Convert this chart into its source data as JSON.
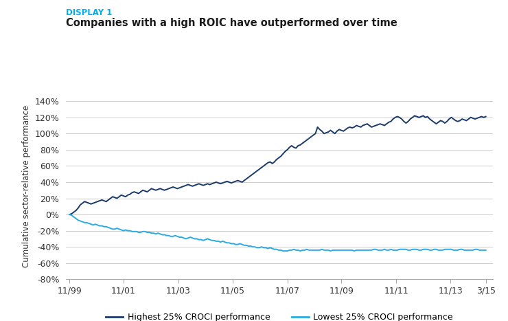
{
  "title_display": "DISPLAY 1",
  "title_main": "Companies with a high ROIC have outperformed over time",
  "ylabel": "Cumulative sector-relative performance",
  "display_color": "#00AEEF",
  "title_color": "#1a1a1a",
  "background_color": "#ffffff",
  "grid_color": "#cccccc",
  "ylim": [
    -80,
    150
  ],
  "yticks": [
    -80,
    -60,
    -40,
    -20,
    0,
    20,
    40,
    60,
    80,
    100,
    120,
    140
  ],
  "xtick_labels": [
    "11/99",
    "11/01",
    "11/03",
    "11/05",
    "11/07",
    "11/09",
    "11/11",
    "11/13",
    "3/15"
  ],
  "legend_high": "Highest 25% CROCI performance",
  "legend_low": "Lowest 25% CROCI performance",
  "high_color": "#1a3a6b",
  "low_color": "#29ABE2",
  "high_y": [
    0,
    1,
    3,
    5,
    8,
    12,
    14,
    16,
    15,
    14,
    13,
    14,
    15,
    16,
    17,
    18,
    17,
    16,
    18,
    20,
    22,
    21,
    20,
    22,
    24,
    23,
    22,
    24,
    25,
    27,
    28,
    27,
    26,
    28,
    30,
    29,
    28,
    30,
    32,
    31,
    30,
    31,
    32,
    31,
    30,
    31,
    32,
    33,
    34,
    33,
    32,
    33,
    34,
    35,
    36,
    37,
    36,
    35,
    36,
    37,
    38,
    37,
    36,
    37,
    38,
    37,
    38,
    39,
    40,
    39,
    38,
    39,
    40,
    41,
    40,
    39,
    40,
    41,
    42,
    41,
    40,
    42,
    44,
    46,
    48,
    50,
    52,
    54,
    56,
    58,
    60,
    62,
    64,
    65,
    63,
    65,
    68,
    70,
    72,
    75,
    78,
    80,
    83,
    85,
    83,
    82,
    85,
    86,
    88,
    90,
    92,
    94,
    96,
    98,
    100,
    108,
    105,
    103,
    100,
    101,
    102,
    104,
    102,
    100,
    103,
    105,
    104,
    103,
    105,
    107,
    108,
    107,
    108,
    110,
    109,
    108,
    110,
    111,
    112,
    110,
    108,
    109,
    110,
    111,
    112,
    111,
    110,
    112,
    114,
    115,
    118,
    120,
    121,
    120,
    118,
    115,
    113,
    115,
    118,
    120,
    122,
    121,
    120,
    121,
    122,
    120,
    121,
    118,
    116,
    114,
    112,
    114,
    116,
    115,
    113,
    115,
    118,
    120,
    118,
    116,
    115,
    116,
    118,
    117,
    116,
    118,
    120,
    119,
    118,
    119,
    120,
    121,
    120,
    121
  ],
  "low_y": [
    0,
    -1,
    -3,
    -5,
    -7,
    -8,
    -9,
    -10,
    -10,
    -11,
    -12,
    -13,
    -12,
    -13,
    -14,
    -14,
    -15,
    -15,
    -16,
    -17,
    -18,
    -18,
    -17,
    -18,
    -19,
    -20,
    -19,
    -20,
    -20,
    -21,
    -21,
    -21,
    -22,
    -22,
    -21,
    -21,
    -22,
    -22,
    -23,
    -23,
    -24,
    -23,
    -24,
    -25,
    -25,
    -26,
    -26,
    -27,
    -27,
    -26,
    -27,
    -28,
    -28,
    -29,
    -30,
    -29,
    -28,
    -29,
    -30,
    -30,
    -31,
    -31,
    -32,
    -31,
    -30,
    -31,
    -32,
    -32,
    -33,
    -33,
    -34,
    -33,
    -34,
    -35,
    -35,
    -36,
    -36,
    -37,
    -37,
    -36,
    -37,
    -38,
    -38,
    -39,
    -39,
    -40,
    -40,
    -41,
    -41,
    -40,
    -41,
    -41,
    -42,
    -41,
    -42,
    -43,
    -43,
    -44,
    -44,
    -45,
    -45,
    -45,
    -44,
    -44,
    -43,
    -44,
    -44,
    -45,
    -44,
    -44,
    -43,
    -44,
    -44,
    -44,
    -44,
    -44,
    -44,
    -43,
    -44,
    -44,
    -44,
    -45,
    -44,
    -44,
    -44,
    -44,
    -44,
    -44,
    -44,
    -44,
    -44,
    -44,
    -45,
    -44,
    -44,
    -44,
    -44,
    -44,
    -44,
    -44,
    -44,
    -43,
    -43,
    -44,
    -44,
    -44,
    -43,
    -44,
    -44,
    -43,
    -44,
    -44,
    -44,
    -43,
    -43,
    -43,
    -43,
    -44,
    -44,
    -43,
    -43,
    -43,
    -44,
    -44,
    -43,
    -43,
    -43,
    -44,
    -44,
    -43,
    -43,
    -44,
    -44,
    -44,
    -43,
    -43,
    -43,
    -43,
    -44,
    -44,
    -44,
    -43,
    -43,
    -44,
    -44,
    -44,
    -44,
    -44,
    -43,
    -43,
    -44,
    -44,
    -44,
    -44
  ]
}
